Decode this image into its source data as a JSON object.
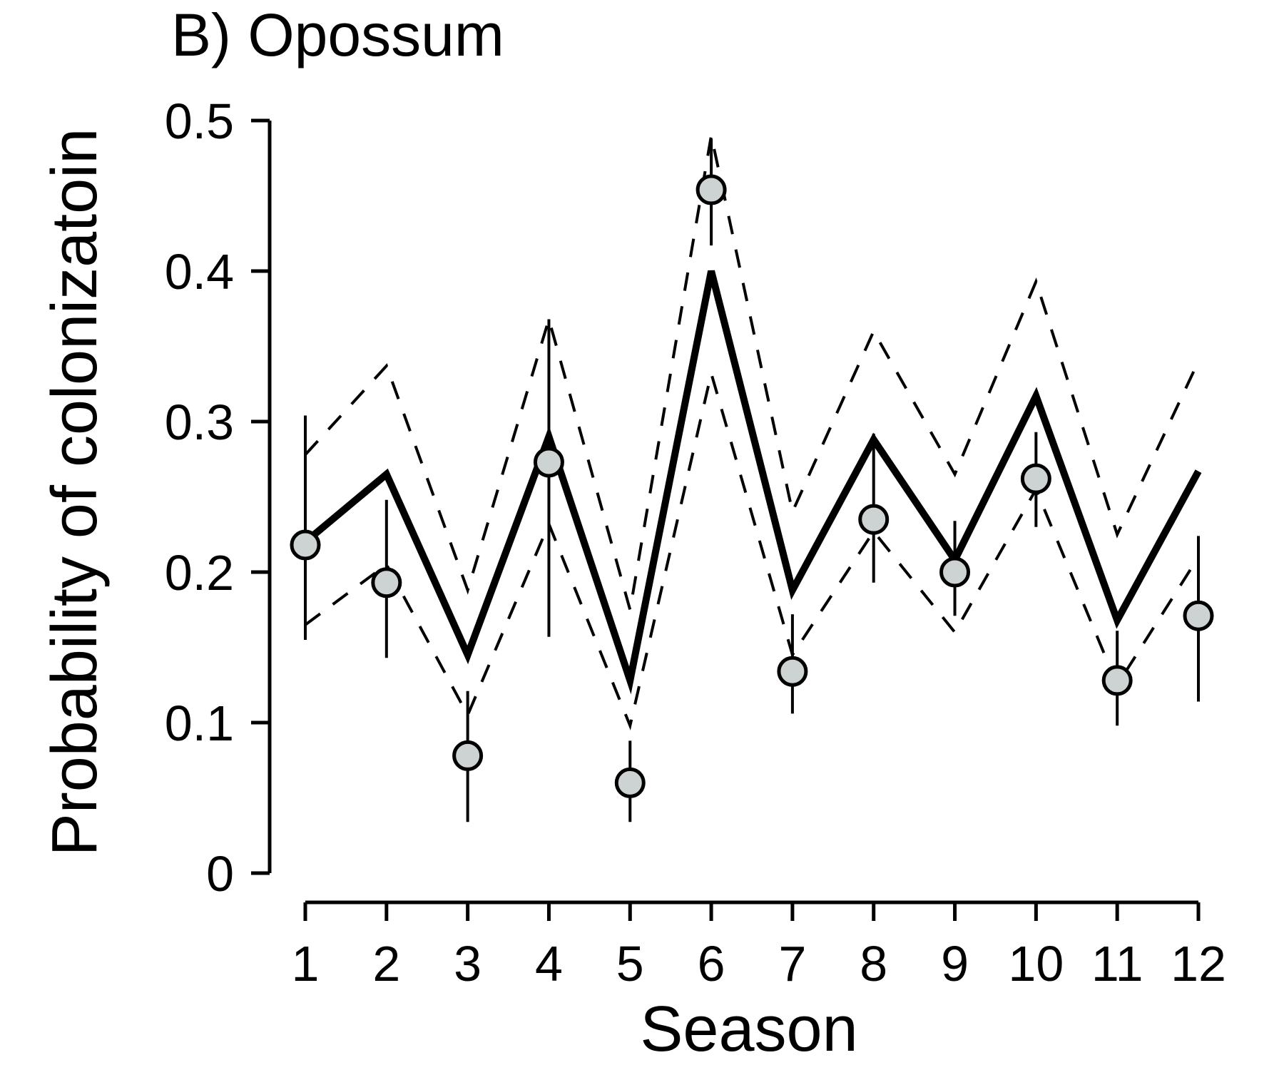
{
  "chart_data": {
    "type": "line",
    "title": "B) Opossum",
    "xlabel": "Season",
    "ylabel": "Probability of colonizatoin",
    "x": [
      1,
      2,
      3,
      4,
      5,
      6,
      7,
      8,
      9,
      10,
      11,
      12
    ],
    "x_tick_labels": [
      "1",
      "2",
      "3",
      "4",
      "5",
      "6",
      "7",
      "8",
      "9",
      "10",
      "11",
      "12"
    ],
    "y_ticks": [
      0,
      0.1,
      0.2,
      0.3,
      0.4,
      0.5
    ],
    "y_tick_labels": [
      "0",
      "0.1",
      "0.2",
      "0.3",
      "0.4",
      "0.5"
    ],
    "ylim": [
      0,
      0.5
    ],
    "xlim": [
      1,
      12
    ],
    "grid": false,
    "series": [
      {
        "style": "solid-thick",
        "values": [
          0.22,
          0.265,
          0.145,
          0.29,
          0.128,
          0.4,
          0.188,
          0.288,
          0.208,
          0.317,
          0.168,
          0.267
        ]
      },
      {
        "style": "dashed",
        "values": [
          0.278,
          0.337,
          0.188,
          0.368,
          0.175,
          0.49,
          0.24,
          0.36,
          0.265,
          0.393,
          0.225,
          0.34
        ]
      },
      {
        "style": "dashed",
        "values": [
          0.165,
          0.205,
          0.105,
          0.232,
          0.098,
          0.332,
          0.145,
          0.227,
          0.16,
          0.255,
          0.125,
          0.21
        ]
      },
      {
        "style": "points-with-error-bars",
        "values": [
          0.218,
          0.193,
          0.078,
          0.273,
          0.06,
          0.454,
          0.134,
          0.235,
          0.2,
          0.262,
          0.128,
          0.171
        ],
        "lower": [
          0.155,
          0.143,
          0.034,
          0.157,
          0.034,
          0.417,
          0.106,
          0.193,
          0.171,
          0.23,
          0.098,
          0.114
        ],
        "upper": [
          0.304,
          0.248,
          0.121,
          0.368,
          0.088,
          0.488,
          0.172,
          0.292,
          0.234,
          0.293,
          0.161,
          0.224
        ]
      }
    ],
    "colors": {
      "point_fill": "#cdd3d3",
      "line": "#000000"
    }
  }
}
